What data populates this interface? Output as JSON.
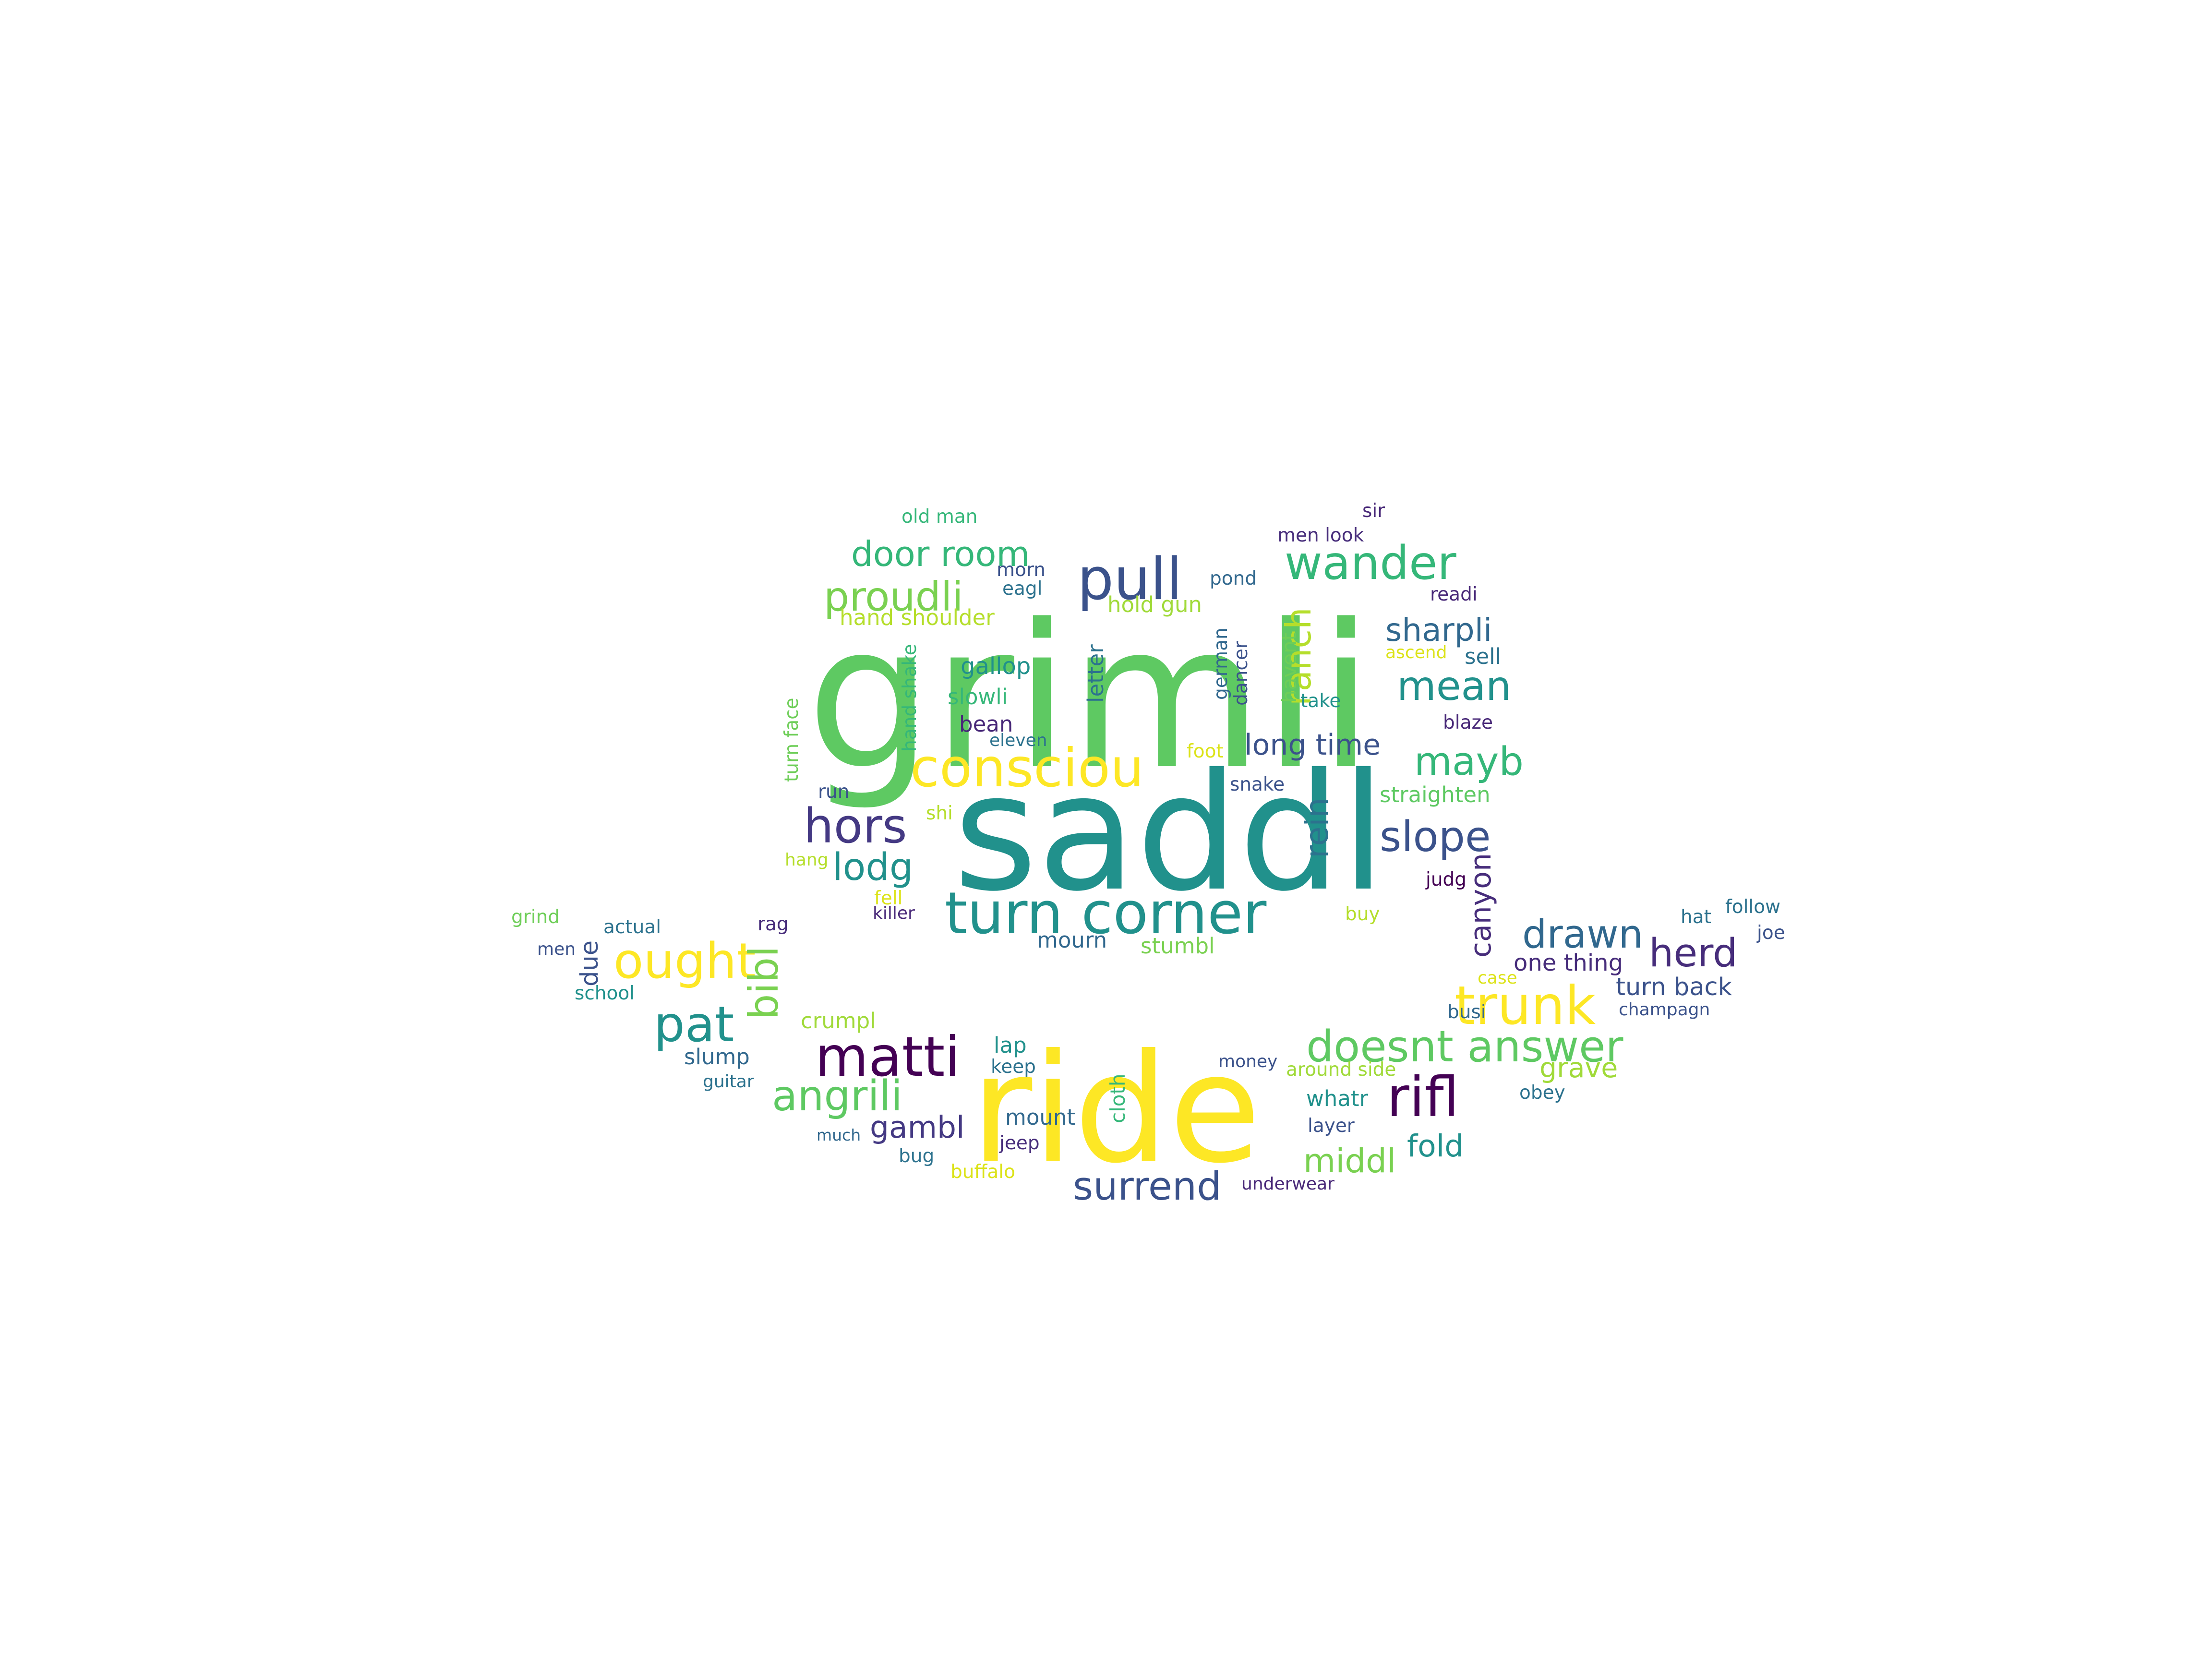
{
  "words": [
    {
      "text": "grimli",
      "color": "#5ec962"
    },
    {
      "text": "saddl",
      "color": "#21918c"
    },
    {
      "text": "ride",
      "color": "#fde725"
    },
    {
      "text": "turn corner",
      "color": "#21918c"
    },
    {
      "text": "consciou",
      "color": "#fde725"
    },
    {
      "text": "pull",
      "color": "#3b528b"
    },
    {
      "text": "wander",
      "color": "#35b779"
    },
    {
      "text": "door room",
      "color": "#35b779"
    },
    {
      "text": "proudli",
      "color": "#7ad151"
    },
    {
      "text": "ranch",
      "color": "#b5de2b"
    },
    {
      "text": "sharpli",
      "color": "#31688e"
    },
    {
      "text": "mean",
      "color": "#21918c"
    },
    {
      "text": "mayb",
      "color": "#35b779"
    },
    {
      "text": "long time",
      "color": "#3b528b"
    },
    {
      "text": "hors",
      "color": "#443983"
    },
    {
      "text": "lodg",
      "color": "#21918c"
    },
    {
      "text": "slope",
      "color": "#3b528b"
    },
    {
      "text": "rein",
      "color": "#2c728e"
    },
    {
      "text": "canyon",
      "color": "#472d7b"
    },
    {
      "text": "ought",
      "color": "#fde725"
    },
    {
      "text": "bibl",
      "color": "#7ad151"
    },
    {
      "text": "pat",
      "color": "#21918c"
    },
    {
      "text": "matti",
      "color": "#440154"
    },
    {
      "text": "angrili",
      "color": "#5ec962"
    },
    {
      "text": "gambl",
      "color": "#443983"
    },
    {
      "text": "surrend",
      "color": "#3b528b"
    },
    {
      "text": "drawn",
      "color": "#31688e"
    },
    {
      "text": "herd",
      "color": "#472d7b"
    },
    {
      "text": "trunk",
      "color": "#fde725"
    },
    {
      "text": "doesnt answer",
      "color": "#5ec962"
    },
    {
      "text": "rifl",
      "color": "#440154"
    },
    {
      "text": "middl",
      "color": "#7ad151"
    },
    {
      "text": "fold",
      "color": "#21918c"
    },
    {
      "text": "grave",
      "color": "#a0da39"
    },
    {
      "text": "turn back",
      "color": "#3b528b"
    },
    {
      "text": "one thing",
      "color": "#472d7b"
    },
    {
      "text": "old man",
      "color": "#35b779"
    },
    {
      "text": "sir",
      "color": "#482878"
    },
    {
      "text": "men look",
      "color": "#472d7b"
    },
    {
      "text": "morn",
      "color": "#3b528b"
    },
    {
      "text": "eagl",
      "color": "#2c728e"
    },
    {
      "text": "pond",
      "color": "#31688e"
    },
    {
      "text": "readi",
      "color": "#482878"
    },
    {
      "text": "hand shoulder",
      "color": "#b5de2b"
    },
    {
      "text": "hold gun",
      "color": "#a0da39"
    },
    {
      "text": "gallop",
      "color": "#21918c"
    },
    {
      "text": "slowli",
      "color": "#35b779"
    },
    {
      "text": "bean",
      "color": "#482878"
    },
    {
      "text": "eleven",
      "color": "#2c728e"
    },
    {
      "text": "hand shake",
      "color": "#35b779"
    },
    {
      "text": "turn face",
      "color": "#6ece58"
    },
    {
      "text": "letter",
      "color": "#2c728e"
    },
    {
      "text": "german",
      "color": "#31688e"
    },
    {
      "text": "dancer",
      "color": "#3b528b"
    },
    {
      "text": "havent",
      "color": "#6ece58"
    },
    {
      "text": "take",
      "color": "#21918c"
    },
    {
      "text": "ascend",
      "color": "#dce319"
    },
    {
      "text": "sell",
      "color": "#2c728e"
    },
    {
      "text": "blaze",
      "color": "#482878"
    },
    {
      "text": "foot",
      "color": "#dce319"
    },
    {
      "text": "snake",
      "color": "#3b528b"
    },
    {
      "text": "straighten",
      "color": "#5ec962"
    },
    {
      "text": "run",
      "color": "#3b528b"
    },
    {
      "text": "shi",
      "color": "#b5de2b"
    },
    {
      "text": "hang",
      "color": "#b5de2b"
    },
    {
      "text": "fell",
      "color": "#dce319"
    },
    {
      "text": "killer",
      "color": "#482878"
    },
    {
      "text": "judg",
      "color": "#440154"
    },
    {
      "text": "buy",
      "color": "#b5de2b"
    },
    {
      "text": "grind",
      "color": "#6ece58"
    },
    {
      "text": "actual",
      "color": "#2c728e"
    },
    {
      "text": "rag",
      "color": "#472d7b"
    },
    {
      "text": "men",
      "color": "#3b528b"
    },
    {
      "text": "due",
      "color": "#3b528b"
    },
    {
      "text": "school",
      "color": "#21918c"
    },
    {
      "text": "mourn",
      "color": "#31688e"
    },
    {
      "text": "stumbl",
      "color": "#7ad151"
    },
    {
      "text": "hat",
      "color": "#2c728e"
    },
    {
      "text": "follow",
      "color": "#2c728e"
    },
    {
      "text": "joe",
      "color": "#3b528b"
    },
    {
      "text": "case",
      "color": "#dce319"
    },
    {
      "text": "busi",
      "color": "#31688e"
    },
    {
      "text": "champagn",
      "color": "#3b528b"
    },
    {
      "text": "crumpl",
      "color": "#a0da39"
    },
    {
      "text": "lap",
      "color": "#21918c"
    },
    {
      "text": "keep",
      "color": "#2c728e"
    },
    {
      "text": "slump",
      "color": "#31688e"
    },
    {
      "text": "guitar",
      "color": "#2c728e"
    },
    {
      "text": "cloth",
      "color": "#35b779"
    },
    {
      "text": "money",
      "color": "#3b528b"
    },
    {
      "text": "around side",
      "color": "#a0da39"
    },
    {
      "text": "obey",
      "color": "#2c728e"
    },
    {
      "text": "whatr",
      "color": "#21918c"
    },
    {
      "text": "layer",
      "color": "#3b528b"
    },
    {
      "text": "mount",
      "color": "#31688e"
    },
    {
      "text": "jeep",
      "color": "#472d7b"
    },
    {
      "text": "much",
      "color": "#31688e"
    },
    {
      "text": "bug",
      "color": "#2c728e"
    },
    {
      "text": "buffalo",
      "color": "#dce319"
    },
    {
      "text": "underwear",
      "color": "#482878"
    }
  ]
}
